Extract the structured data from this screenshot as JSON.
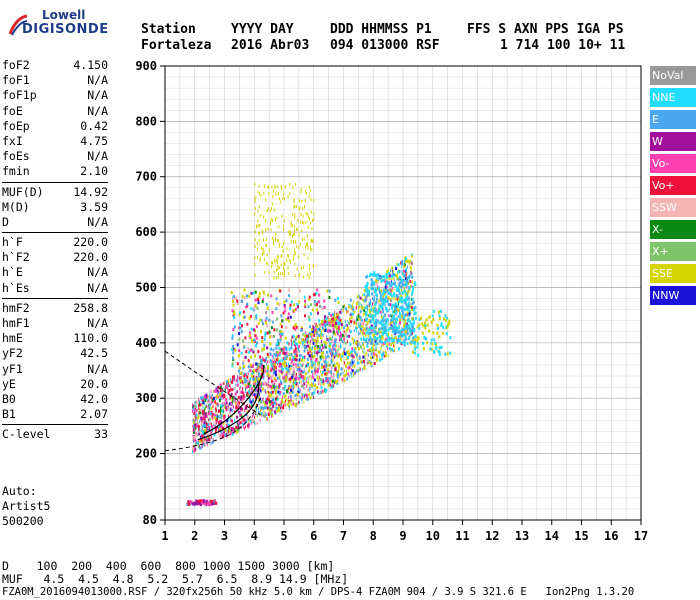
{
  "logo": {
    "line1": "Lowell",
    "line2": "DIGISONDE"
  },
  "header": {
    "row1": [
      "Station",
      "YYYY DAY",
      "DDD HHMMSS P1",
      "FFS S AXN PPS IGA PS"
    ],
    "row2": [
      "Fortaleza",
      "2016 Abr03",
      "094 013000 RSF",
      "1 714 100 10+ 11"
    ]
  },
  "params": {
    "group1": [
      {
        "k": "foF2",
        "v": "4.150"
      },
      {
        "k": "foF1",
        "v": "N/A"
      },
      {
        "k": "foF1p",
        "v": "N/A"
      },
      {
        "k": "foE",
        "v": "N/A"
      },
      {
        "k": "foEp",
        "v": "0.42"
      },
      {
        "k": "fxI",
        "v": "4.75"
      },
      {
        "k": "foEs",
        "v": "N/A"
      },
      {
        "k": "fmin",
        "v": "2.10"
      }
    ],
    "group2": [
      {
        "k": "MUF(D)",
        "v": "14.92"
      },
      {
        "k": "M(D)",
        "v": "3.59"
      },
      {
        "k": "D",
        "v": "N/A"
      }
    ],
    "group3": [
      {
        "k": "h`F",
        "v": "220.0"
      },
      {
        "k": "h`F2",
        "v": "220.0"
      },
      {
        "k": "h`E",
        "v": "N/A"
      },
      {
        "k": "h`Es",
        "v": "N/A"
      }
    ],
    "group4": [
      {
        "k": "hmF2",
        "v": "258.8"
      },
      {
        "k": "hmF1",
        "v": "N/A"
      },
      {
        "k": "hmE",
        "v": "110.0"
      },
      {
        "k": "yF2",
        "v": "42.5"
      },
      {
        "k": "yF1",
        "v": "N/A"
      },
      {
        "k": "yE",
        "v": "20.0"
      },
      {
        "k": "B0",
        "v": "42.0"
      },
      {
        "k": "B1",
        "v": "2.07"
      }
    ],
    "group5": [
      {
        "k": "C-level",
        "v": "33"
      }
    ]
  },
  "auto": {
    "line1": "Auto:",
    "line2": "Artist5",
    "line3": "500200"
  },
  "legend": [
    {
      "label": "NoVal",
      "bg": "#9a9a9a",
      "fg": "#ffffff"
    },
    {
      "label": "NNE",
      "bg": "#22ddff",
      "fg": "#ffffff"
    },
    {
      "label": "E",
      "bg": "#4aa8f0",
      "fg": "#ffffff"
    },
    {
      "label": "W",
      "bg": "#a0109a",
      "fg": "#ffffff"
    },
    {
      "label": "Vo-",
      "bg": "#ff40b0",
      "fg": "#ffffff"
    },
    {
      "label": "Vo+",
      "bg": "#f0103c",
      "fg": "#ffffff"
    },
    {
      "label": "SSW",
      "bg": "#f4b4b4",
      "fg": "#ffffff"
    },
    {
      "label": "X-",
      "bg": "#0a8a14",
      "fg": "#ffffff"
    },
    {
      "label": "X+",
      "bg": "#7ec46a",
      "fg": "#ffffff"
    },
    {
      "label": "SSE",
      "bg": "#d4d400",
      "fg": "#ffffff"
    },
    {
      "label": "NNW",
      "bg": "#1a12d8",
      "fg": "#ffffff"
    }
  ],
  "chart_data": {
    "type": "scatter",
    "xlim": [
      1,
      17
    ],
    "ylim": [
      80,
      900
    ],
    "x_ticks": [
      1,
      2,
      3,
      4,
      5,
      6,
      7,
      8,
      9,
      10,
      11,
      12,
      13,
      14,
      15,
      16,
      17
    ],
    "y_ticks": [
      80,
      200,
      300,
      400,
      500,
      600,
      700,
      800,
      900
    ],
    "grid": true
  },
  "bottom": {
    "d_row": "D    100  200  400  600  800 1000 1500 3000 [km]",
    "muf_row": "MUF   4.5  4.5  4.8  5.2  5.7  6.5  8.9 14.9 [MHz]",
    "footer": "FZA0M_2016094013000.RSF / 320fx256h 50 kHz 5.0 km / DPS-4 FZA0M 904 / 3.9 S 321.6 E   Ion2Png 1.3.20"
  }
}
